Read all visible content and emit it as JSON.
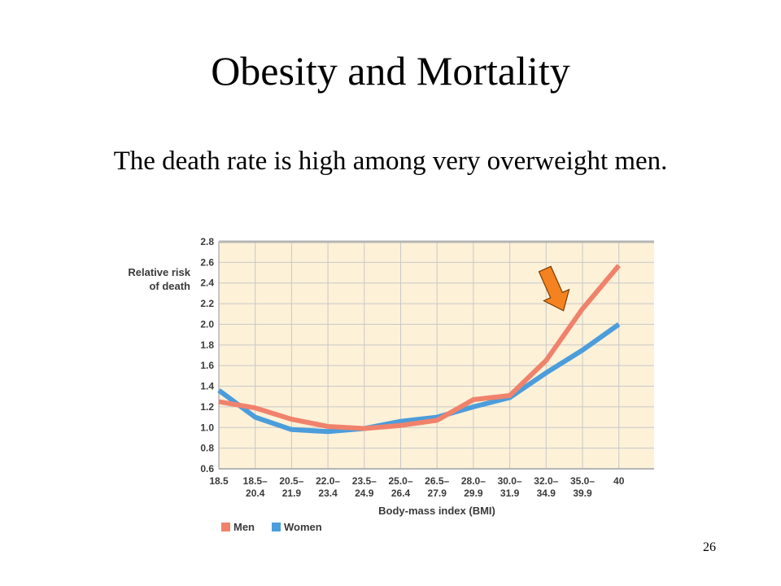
{
  "slide": {
    "title": "Obesity and Mortality",
    "subtitle": "The death rate is high among very overweight men.",
    "page_number": "26"
  },
  "chart_data": {
    "type": "line",
    "ylabel": [
      "Relative risk",
      "of death"
    ],
    "xlabel": "Body-mass index (BMI)",
    "ylim": [
      0.6,
      2.8
    ],
    "yticks": [
      "0.6",
      "0.8",
      "1.0",
      "1.2",
      "1.4",
      "1.6",
      "1.8",
      "2.0",
      "2.2",
      "2.4",
      "2.6",
      "2.8"
    ],
    "categories": [
      [
        "18.5"
      ],
      [
        "18.5–",
        "20.4"
      ],
      [
        "20.5–",
        "21.9"
      ],
      [
        "22.0–",
        "23.4"
      ],
      [
        "23.5–",
        "24.9"
      ],
      [
        "25.0–",
        "26.4"
      ],
      [
        "26.5–",
        "27.9"
      ],
      [
        "28.0–",
        "29.9"
      ],
      [
        "30.0–",
        "31.9"
      ],
      [
        "32.0–",
        "34.9"
      ],
      [
        "35.0–",
        "39.9"
      ],
      [
        "40"
      ]
    ],
    "series": [
      {
        "name": "Men",
        "color": "#f0826c",
        "values": [
          1.25,
          1.19,
          1.08,
          1.01,
          0.99,
          1.02,
          1.07,
          1.27,
          1.31,
          1.65,
          2.15,
          2.57
        ]
      },
      {
        "name": "Women",
        "color": "#4b9ddb",
        "values": [
          1.36,
          1.1,
          0.98,
          0.96,
          0.99,
          1.06,
          1.1,
          1.2,
          1.29,
          1.53,
          1.75,
          2.0
        ]
      }
    ],
    "grid": true,
    "background": "#fdf1d8",
    "legend": "bottom-left",
    "annotation": {
      "type": "arrow",
      "color": "#f58220",
      "target_series": "Men"
    }
  }
}
